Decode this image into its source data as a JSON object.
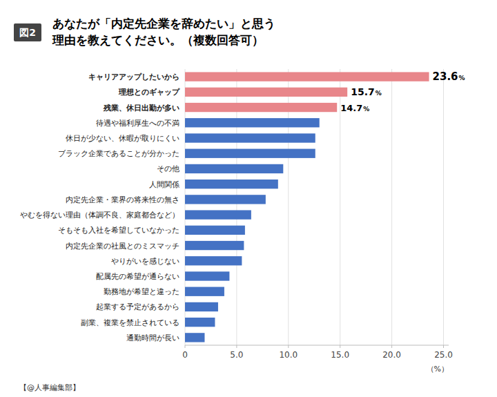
{
  "chart_data": {
    "type": "bar",
    "orientation": "horizontal",
    "title": "あなたが「内定先企業を辞めたい」と思う\n理由を教えてください。（複数回答可）",
    "annotations": [
      "図2",
      "【@人事編集部】"
    ],
    "xlabel": "（%）",
    "categories": [
      "キャリアアップしたいから",
      "理想とのギャップ",
      "残業、休日出勤が多い",
      "待遇や福利厚生への不満",
      "休日が少ない、休暇が取りにくい",
      "ブラック企業であることが分かった",
      "その他",
      "人間関係",
      "内定先企業・業界の将来性の無さ",
      "やむを得ない理由（体調不良、家庭都合など）",
      "そもそも入社を希望していなかった",
      "内定先企業の社風とのミスマッチ",
      "やりがいを感じない",
      "配属先の希望が通らない",
      "勤務地が希望と違った",
      "起業する予定があるから",
      "副業、複業を禁止されている",
      "通勤時間が長い"
    ],
    "values": [
      23.6,
      15.7,
      14.7,
      13.0,
      12.6,
      12.6,
      9.5,
      9.0,
      7.8,
      6.4,
      5.8,
      5.7,
      5.5,
      4.3,
      3.8,
      3.2,
      2.9,
      1.9
    ],
    "value_labels": [
      "23.6%",
      "15.7%",
      "14.7%",
      null,
      null,
      null,
      null,
      null,
      null,
      null,
      null,
      null,
      null,
      null,
      null,
      null,
      null,
      null
    ],
    "data_labels": true,
    "colors": [
      "#E8868A",
      "#E8868A",
      "#E8868A",
      "#4472C4",
      "#4472C4",
      "#4472C4",
      "#4472C4",
      "#4472C4",
      "#4472C4",
      "#4472C4",
      "#4472C4",
      "#4472C4",
      "#4472C4",
      "#4472C4",
      "#4472C4",
      "#4472C4",
      "#4472C4",
      "#4472C4"
    ],
    "xlim": [
      0,
      25.5
    ],
    "xticks": [
      0,
      {
        "value": 5.0,
        "label": "5.0"
      },
      {
        "value": 10.0,
        "label": "10.0"
      },
      {
        "value": 15.0,
        "label": "15.0"
      },
      {
        "value": 20.0,
        "label": "20.0"
      },
      {
        "value": 25.0,
        "label": "25.0"
      }
    ],
    "grid": true
  }
}
